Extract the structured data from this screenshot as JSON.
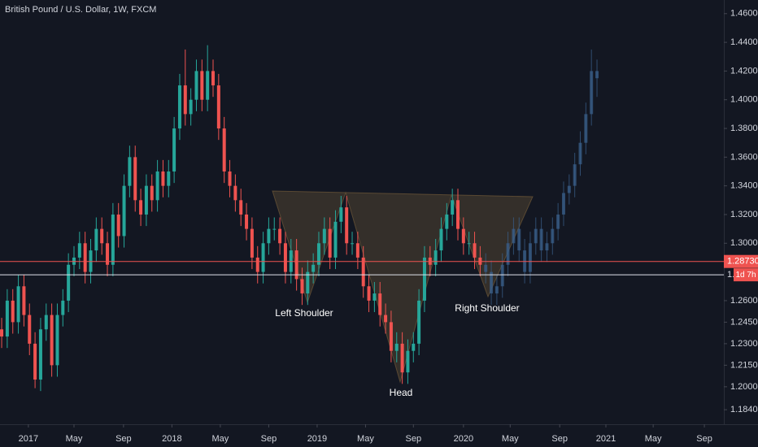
{
  "chart_data": {
    "type": "candlestick",
    "title": "British Pound / U.S. Dollar, 1W, FXCM",
    "up_color": "#26a69a",
    "down_color": "#ef5350",
    "projection_color": "#3a5f8a",
    "ylim": [
      1.175,
      1.4695
    ],
    "yticks": [
      {
        "value": 1.46,
        "label": "1.46000"
      },
      {
        "value": 1.44,
        "label": "1.44000"
      },
      {
        "value": 1.42,
        "label": "1.42000"
      },
      {
        "value": 1.4,
        "label": "1.40000"
      },
      {
        "value": 1.38,
        "label": "1.38000"
      },
      {
        "value": 1.36,
        "label": "1.36000"
      },
      {
        "value": 1.34,
        "label": "1.34000"
      },
      {
        "value": 1.32,
        "label": "1.32000"
      },
      {
        "value": 1.3,
        "label": "1.30000"
      },
      {
        "value": 1.26,
        "label": "1.26000"
      },
      {
        "value": 1.245,
        "label": "1.24500"
      },
      {
        "value": 1.23,
        "label": "1.23000"
      },
      {
        "value": 1.215,
        "label": "1.21500"
      },
      {
        "value": 1.2,
        "label": "1.20000"
      },
      {
        "value": 1.184,
        "label": "1.18400"
      }
    ],
    "xlim": [
      -0.3,
      129.8
    ],
    "xticks": [
      {
        "value": 4.8,
        "label": "2017"
      },
      {
        "value": 13.0,
        "label": "May"
      },
      {
        "value": 21.9,
        "label": "Sep"
      },
      {
        "value": 30.6,
        "label": "2018"
      },
      {
        "value": 39.3,
        "label": "May"
      },
      {
        "value": 48.0,
        "label": "Sep"
      },
      {
        "value": 56.7,
        "label": "2019"
      },
      {
        "value": 65.4,
        "label": "May"
      },
      {
        "value": 74.0,
        "label": "Sep"
      },
      {
        "value": 83.0,
        "label": "2020"
      },
      {
        "value": 91.4,
        "label": "May"
      },
      {
        "value": 100.3,
        "label": "Sep"
      },
      {
        "value": 108.6,
        "label": "2021"
      },
      {
        "value": 117.1,
        "label": "May"
      },
      {
        "value": 126.3,
        "label": "Sep"
      }
    ],
    "candles": [
      [
        1.24,
        1.248,
        1.227,
        1.235
      ],
      [
        1.235,
        1.268,
        1.227,
        1.26
      ],
      [
        1.26,
        1.268,
        1.237,
        1.245
      ],
      [
        1.245,
        1.278,
        1.237,
        1.27
      ],
      [
        1.27,
        1.278,
        1.242,
        1.25
      ],
      [
        1.25,
        1.258,
        1.222,
        1.23
      ],
      [
        1.23,
        1.238,
        1.199,
        1.205
      ],
      [
        1.205,
        1.248,
        1.197,
        1.24
      ],
      [
        1.24,
        1.258,
        1.232,
        1.25
      ],
      [
        1.25,
        1.258,
        1.207,
        1.215
      ],
      [
        1.215,
        1.258,
        1.207,
        1.25
      ],
      [
        1.25,
        1.268,
        1.242,
        1.26
      ],
      [
        1.26,
        1.293,
        1.252,
        1.285
      ],
      [
        1.285,
        1.298,
        1.277,
        1.29
      ],
      [
        1.29,
        1.308,
        1.282,
        1.3
      ],
      [
        1.3,
        1.308,
        1.272,
        1.28
      ],
      [
        1.28,
        1.303,
        1.272,
        1.295
      ],
      [
        1.295,
        1.318,
        1.287,
        1.31
      ],
      [
        1.31,
        1.318,
        1.292,
        1.3
      ],
      [
        1.3,
        1.308,
        1.277,
        1.285
      ],
      [
        1.285,
        1.328,
        1.277,
        1.32
      ],
      [
        1.32,
        1.328,
        1.297,
        1.305
      ],
      [
        1.305,
        1.348,
        1.297,
        1.34
      ],
      [
        1.34,
        1.368,
        1.332,
        1.36
      ],
      [
        1.36,
        1.368,
        1.322,
        1.33
      ],
      [
        1.33,
        1.338,
        1.312,
        1.32
      ],
      [
        1.32,
        1.348,
        1.312,
        1.34
      ],
      [
        1.34,
        1.348,
        1.322,
        1.33
      ],
      [
        1.33,
        1.358,
        1.322,
        1.35
      ],
      [
        1.35,
        1.358,
        1.332,
        1.34
      ],
      [
        1.34,
        1.358,
        1.332,
        1.35
      ],
      [
        1.35,
        1.388,
        1.342,
        1.38
      ],
      [
        1.38,
        1.418,
        1.372,
        1.41
      ],
      [
        1.41,
        1.435,
        1.382,
        1.39
      ],
      [
        1.39,
        1.408,
        1.382,
        1.4
      ],
      [
        1.4,
        1.428,
        1.392,
        1.42
      ],
      [
        1.42,
        1.428,
        1.392,
        1.4
      ],
      [
        1.4,
        1.438,
        1.392,
        1.42
      ],
      [
        1.42,
        1.428,
        1.402,
        1.41
      ],
      [
        1.41,
        1.418,
        1.372,
        1.38
      ],
      [
        1.38,
        1.388,
        1.342,
        1.35
      ],
      [
        1.35,
        1.358,
        1.332,
        1.34
      ],
      [
        1.34,
        1.348,
        1.322,
        1.33
      ],
      [
        1.33,
        1.338,
        1.312,
        1.32
      ],
      [
        1.32,
        1.328,
        1.302,
        1.31
      ],
      [
        1.31,
        1.318,
        1.282,
        1.29
      ],
      [
        1.29,
        1.298,
        1.272,
        1.28
      ],
      [
        1.28,
        1.308,
        1.272,
        1.3
      ],
      [
        1.3,
        1.318,
        1.292,
        1.31
      ],
      [
        1.31,
        1.318,
        1.302,
        1.31
      ],
      [
        1.31,
        1.318,
        1.292,
        1.3
      ],
      [
        1.3,
        1.308,
        1.272,
        1.28
      ],
      [
        1.28,
        1.303,
        1.272,
        1.295
      ],
      [
        1.295,
        1.303,
        1.267,
        1.275
      ],
      [
        1.275,
        1.283,
        1.257,
        1.265
      ],
      [
        1.265,
        1.288,
        1.257,
        1.28
      ],
      [
        1.28,
        1.293,
        1.272,
        1.285
      ],
      [
        1.285,
        1.308,
        1.277,
        1.3
      ],
      [
        1.3,
        1.318,
        1.292,
        1.31
      ],
      [
        1.31,
        1.318,
        1.282,
        1.29
      ],
      [
        1.29,
        1.323,
        1.282,
        1.315
      ],
      [
        1.315,
        1.333,
        1.307,
        1.325
      ],
      [
        1.325,
        1.333,
        1.292,
        1.3
      ],
      [
        1.3,
        1.308,
        1.292,
        1.3
      ],
      [
        1.3,
        1.308,
        1.282,
        1.29
      ],
      [
        1.29,
        1.298,
        1.262,
        1.27
      ],
      [
        1.27,
        1.278,
        1.252,
        1.26
      ],
      [
        1.26,
        1.273,
        1.252,
        1.265
      ],
      [
        1.265,
        1.273,
        1.242,
        1.25
      ],
      [
        1.25,
        1.258,
        1.237,
        1.245
      ],
      [
        1.245,
        1.253,
        1.217,
        1.225
      ],
      [
        1.225,
        1.238,
        1.217,
        1.23
      ],
      [
        1.23,
        1.238,
        1.202,
        1.21
      ],
      [
        1.21,
        1.233,
        1.202,
        1.225
      ],
      [
        1.225,
        1.238,
        1.217,
        1.23
      ],
      [
        1.23,
        1.268,
        1.222,
        1.26
      ],
      [
        1.26,
        1.298,
        1.252,
        1.29
      ],
      [
        1.29,
        1.298,
        1.277,
        1.285
      ],
      [
        1.285,
        1.303,
        1.277,
        1.295
      ],
      [
        1.295,
        1.318,
        1.287,
        1.31
      ],
      [
        1.31,
        1.328,
        1.302,
        1.32
      ],
      [
        1.32,
        1.338,
        1.312,
        1.33
      ],
      [
        1.33,
        1.338,
        1.302,
        1.31
      ],
      [
        1.31,
        1.318,
        1.292,
        1.3
      ],
      [
        1.3,
        1.308,
        1.292,
        1.3
      ],
      [
        1.3,
        1.308,
        1.282,
        1.29
      ],
      [
        1.29,
        1.298,
        1.277,
        1.285
      ]
    ],
    "projection": [
      [
        1.285,
        1.293,
        1.272,
        1.28
      ],
      [
        1.28,
        1.288,
        1.257,
        1.265
      ],
      [
        1.265,
        1.278,
        1.257,
        1.27
      ],
      [
        1.27,
        1.293,
        1.262,
        1.285
      ],
      [
        1.285,
        1.308,
        1.277,
        1.3
      ],
      [
        1.3,
        1.318,
        1.292,
        1.31
      ],
      [
        1.31,
        1.318,
        1.287,
        1.295
      ],
      [
        1.295,
        1.303,
        1.272,
        1.28
      ],
      [
        1.28,
        1.308,
        1.272,
        1.3
      ],
      [
        1.3,
        1.318,
        1.292,
        1.31
      ],
      [
        1.31,
        1.318,
        1.287,
        1.295
      ],
      [
        1.295,
        1.308,
        1.287,
        1.3
      ],
      [
        1.3,
        1.318,
        1.292,
        1.31
      ],
      [
        1.31,
        1.328,
        1.302,
        1.32
      ],
      [
        1.32,
        1.343,
        1.312,
        1.335
      ],
      [
        1.335,
        1.348,
        1.327,
        1.34
      ],
      [
        1.34,
        1.363,
        1.332,
        1.355
      ],
      [
        1.355,
        1.378,
        1.347,
        1.37
      ],
      [
        1.37,
        1.398,
        1.362,
        1.39
      ],
      [
        1.39,
        1.435,
        1.382,
        1.42
      ],
      [
        1.42,
        1.428,
        1.402,
        1.415
      ]
    ],
    "price_lines": [
      {
        "value": 1.2873,
        "label": "1.28730",
        "color": "#ef5350"
      },
      {
        "value": 1.278,
        "label": "1.",
        "countdown": "1d 7h",
        "color": "#e0e3eb"
      }
    ],
    "annotations": [
      "Left Shoulder",
      "Head",
      "Right Shoulder"
    ]
  }
}
